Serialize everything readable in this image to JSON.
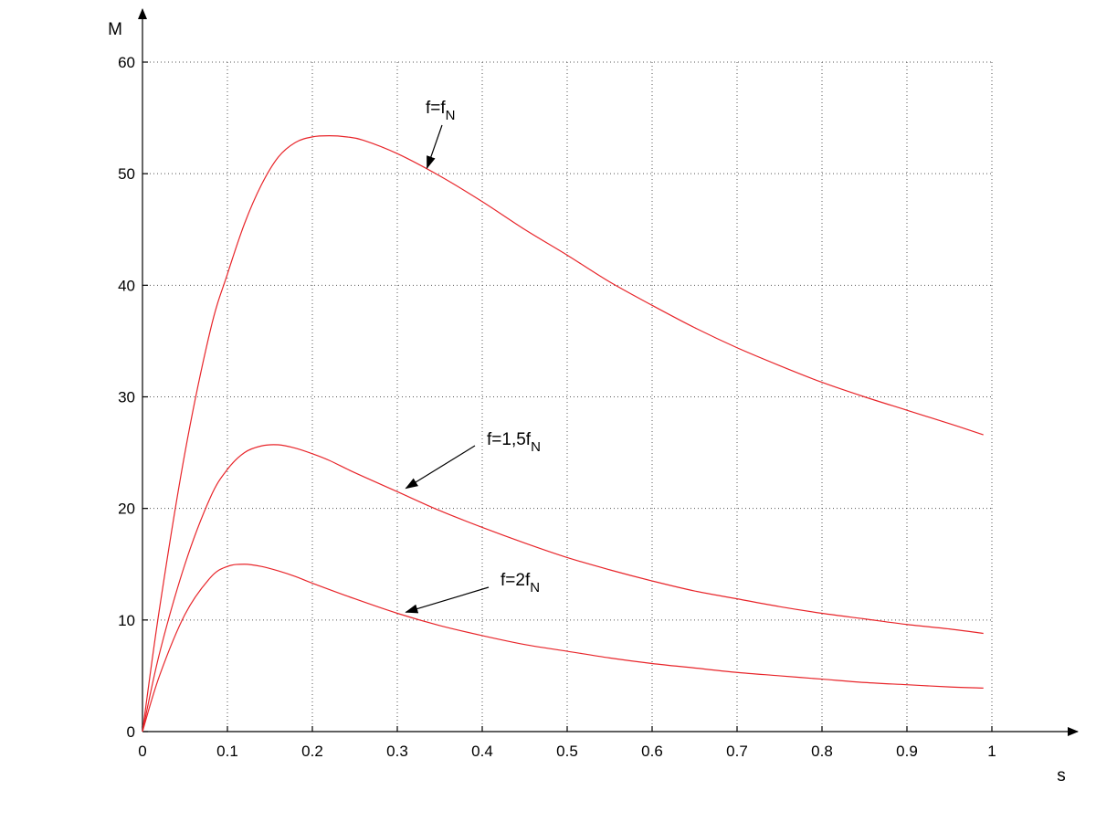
{
  "chart_data": {
    "type": "line",
    "xlabel": "s",
    "ylabel": "M",
    "xlim": [
      0,
      1
    ],
    "ylim": [
      0,
      60
    ],
    "x_ticks": [
      "0",
      "0.1",
      "0.2",
      "0.3",
      "0.4",
      "0.5",
      "0.6",
      "0.7",
      "0.8",
      "0.9",
      "1"
    ],
    "y_ticks": [
      "0",
      "10",
      "20",
      "30",
      "40",
      "50",
      "60"
    ],
    "grid": true,
    "series_color": "#e8252a",
    "series": [
      {
        "x": [
          0,
          0.02,
          0.05,
          0.08,
          0.1,
          0.12,
          0.14,
          0.16,
          0.18,
          0.2,
          0.22,
          0.24,
          0.26,
          0.3,
          0.35,
          0.4,
          0.45,
          0.5,
          0.55,
          0.6,
          0.65,
          0.7,
          0.75,
          0.8,
          0.85,
          0.9,
          0.95,
          0.99
        ],
        "y": [
          0,
          11,
          25,
          36,
          41,
          45.5,
          49,
          51.5,
          52.8,
          53.3,
          53.4,
          53.3,
          53,
          51.8,
          49.8,
          47.5,
          45,
          42.7,
          40.3,
          38.2,
          36.2,
          34.4,
          32.8,
          31.3,
          30,
          28.8,
          27.6,
          26.6
        ]
      },
      {
        "x": [
          0,
          0.02,
          0.05,
          0.08,
          0.1,
          0.12,
          0.14,
          0.16,
          0.18,
          0.2,
          0.22,
          0.25,
          0.3,
          0.35,
          0.4,
          0.45,
          0.5,
          0.55,
          0.6,
          0.65,
          0.7,
          0.75,
          0.8,
          0.85,
          0.9,
          0.95,
          0.99
        ],
        "y": [
          0,
          7,
          15,
          21,
          23.5,
          25,
          25.6,
          25.7,
          25.4,
          24.9,
          24.3,
          23.2,
          21.5,
          19.8,
          18.3,
          16.9,
          15.6,
          14.5,
          13.5,
          12.6,
          11.9,
          11.2,
          10.6,
          10.1,
          9.6,
          9.2,
          8.8
        ]
      },
      {
        "x": [
          0,
          0.02,
          0.05,
          0.08,
          0.1,
          0.12,
          0.14,
          0.16,
          0.18,
          0.2,
          0.25,
          0.3,
          0.35,
          0.4,
          0.45,
          0.5,
          0.55,
          0.6,
          0.65,
          0.7,
          0.75,
          0.8,
          0.85,
          0.9,
          0.95,
          0.99
        ],
        "y": [
          0,
          5,
          10.5,
          13.8,
          14.8,
          15,
          14.8,
          14.4,
          13.9,
          13.3,
          11.9,
          10.6,
          9.5,
          8.6,
          7.8,
          7.2,
          6.6,
          6.1,
          5.7,
          5.3,
          5,
          4.7,
          4.4,
          4.2,
          4,
          3.9
        ]
      }
    ],
    "annotations": [
      {
        "text": "f=f",
        "sub": "N",
        "target": [
          0.335,
          50.5
        ]
      },
      {
        "text": "f=1,5f",
        "sub": "N",
        "target": [
          0.31,
          21.8
        ]
      },
      {
        "text": "f=2f",
        "sub": "N",
        "target": [
          0.31,
          10.7
        ]
      }
    ]
  }
}
